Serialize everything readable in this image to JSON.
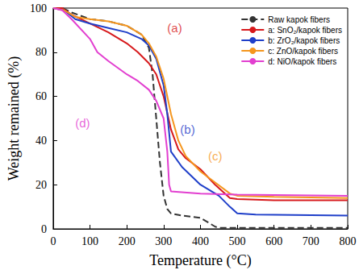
{
  "chart_data": {
    "type": "line",
    "x_label": "Temperature (°C)",
    "y_label": "Weight remained (%)",
    "xlim": [
      0,
      800
    ],
    "xticks": [
      0,
      100,
      200,
      300,
      400,
      500,
      600,
      700,
      800
    ],
    "ylim": [
      0,
      100
    ],
    "yticks": [
      0,
      20,
      40,
      60,
      80,
      100
    ],
    "grid": false,
    "legend": "upper right",
    "series": [
      {
        "name": "Raw kapok fibers",
        "color": "#333333",
        "line_style": "dashed",
        "x": [
          0,
          25,
          50,
          100,
          150,
          200,
          240,
          260,
          270,
          280,
          290,
          300,
          310,
          320,
          350,
          400,
          440,
          450,
          500,
          800
        ],
        "values": [
          100,
          100,
          98,
          95,
          94,
          92,
          88,
          82,
          70,
          50,
          30,
          15,
          9,
          7,
          6,
          5,
          1,
          0.5,
          0.5,
          0.5
        ]
      },
      {
        "name": "a: SnO₂/kapok fibers",
        "color": "#d7191c",
        "line_style": "solid",
        "x": [
          0,
          25,
          50,
          100,
          150,
          200,
          230,
          260,
          280,
          300,
          320,
          340,
          360,
          400,
          440,
          480,
          500,
          600,
          800
        ],
        "values": [
          100,
          100,
          97,
          93,
          89,
          84,
          80,
          75,
          70,
          60,
          45,
          36,
          32,
          27,
          20,
          14,
          13.5,
          13,
          13
        ]
      },
      {
        "name": "b: ZrO₂/kapok fibers",
        "color": "#1f3fc9",
        "line_style": "solid",
        "x": [
          0,
          30,
          60,
          100,
          150,
          200,
          240,
          260,
          280,
          300,
          310,
          320,
          350,
          400,
          450,
          480,
          500,
          550,
          800
        ],
        "values": [
          100,
          99,
          95,
          93,
          91,
          89,
          86,
          83,
          77,
          65,
          52,
          35,
          28,
          20,
          15,
          10,
          7,
          6.5,
          6
        ]
      },
      {
        "name": "c: ZnO/kapok fibers",
        "color": "#f5961e",
        "line_style": "solid",
        "x": [
          0,
          30,
          60,
          100,
          150,
          200,
          240,
          260,
          280,
          300,
          320,
          340,
          360,
          400,
          440,
          480,
          500,
          600,
          800
        ],
        "values": [
          100,
          99,
          96,
          95,
          94,
          92,
          88,
          84,
          78,
          68,
          52,
          40,
          33,
          26,
          21,
          16,
          15,
          14.5,
          14
        ]
      },
      {
        "name": "d: NiO/kapok fibers",
        "color": "#e23fd0",
        "line_style": "solid",
        "x": [
          0,
          25,
          50,
          100,
          120,
          150,
          200,
          230,
          260,
          280,
          300,
          310,
          315,
          320,
          400,
          500,
          800
        ],
        "values": [
          100,
          99,
          95,
          86,
          80,
          76,
          70,
          67,
          63,
          58,
          50,
          35,
          20,
          17,
          16,
          15.5,
          15
        ]
      }
    ],
    "annotations": [
      {
        "text": "(a)",
        "x": 330,
        "y": 91,
        "color": "#d7191c"
      },
      {
        "text": "(b)",
        "x": 365,
        "y": 45,
        "color": "#1f3fc9"
      },
      {
        "text": "(c)",
        "x": 440,
        "y": 33,
        "color": "#f5961e"
      },
      {
        "text": "(d)",
        "x": 80,
        "y": 48,
        "color": "#e23fd0"
      }
    ]
  }
}
